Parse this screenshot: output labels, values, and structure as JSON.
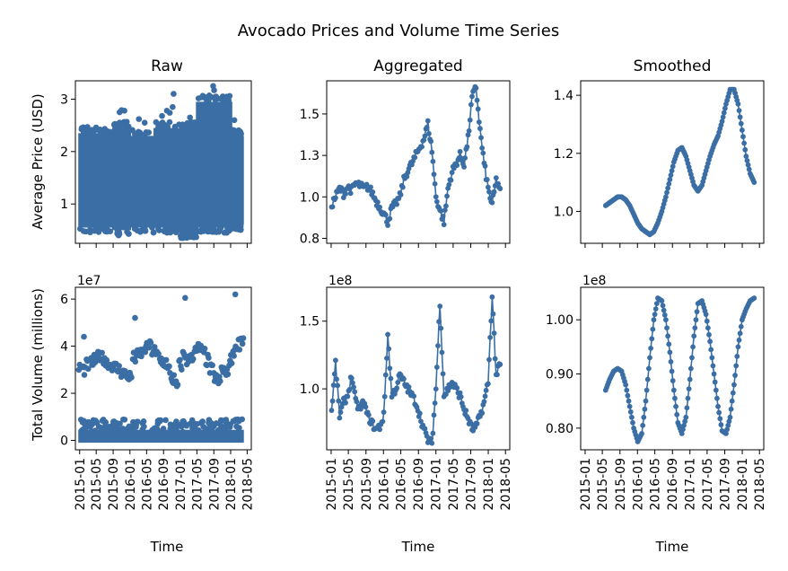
{
  "figure": {
    "title": "Avocado Prices and Volume Time Series",
    "series_color": "#3a6ea5"
  },
  "x_axis": {
    "tick_labels": [
      "2015-01",
      "2015-05",
      "2015-09",
      "2016-01",
      "2016-05",
      "2016-09",
      "2017-01",
      "2017-05",
      "2017-09",
      "2018-01",
      "2018-05"
    ],
    "label": "Time"
  },
  "chart_data": [
    {
      "id": "raw-price",
      "type": "scatter",
      "title": "Raw",
      "ylabel": "Average Price (USD)",
      "xlabel": "",
      "ylim": [
        0.25,
        3.35
      ],
      "yticks": [
        1,
        2,
        3
      ],
      "scale_label": "",
      "bands": [
        {
          "start": "2015-01-04",
          "end": "2015-08-30",
          "min": 0.55,
          "max": 2.35
        },
        {
          "start": "2015-09-06",
          "end": "2015-12-27",
          "min": 0.5,
          "max": 2.45
        },
        {
          "start": "2016-01-03",
          "end": "2016-06-26",
          "min": 0.55,
          "max": 2.3
        },
        {
          "start": "2016-07-03",
          "end": "2016-12-25",
          "min": 0.55,
          "max": 2.45
        },
        {
          "start": "2017-01-01",
          "end": "2017-04-30",
          "min": 0.45,
          "max": 2.45
        },
        {
          "start": "2017-05-07",
          "end": "2017-12-31",
          "min": 0.55,
          "max": 2.95
        },
        {
          "start": "2018-01-07",
          "end": "2018-03-25",
          "min": 0.6,
          "max": 2.3
        }
      ],
      "outliers": [
        {
          "x": "2015-10-18",
          "y": 2.75
        },
        {
          "x": "2015-11-01",
          "y": 2.79
        },
        {
          "x": "2015-11-22",
          "y": 2.78
        },
        {
          "x": "2016-03-06",
          "y": 2.62
        },
        {
          "x": "2016-04-17",
          "y": 2.55
        },
        {
          "x": "2016-08-21",
          "y": 2.68
        },
        {
          "x": "2016-09-25",
          "y": 2.78
        },
        {
          "x": "2016-10-16",
          "y": 2.74
        },
        {
          "x": "2016-11-06",
          "y": 2.85
        },
        {
          "x": "2016-11-13",
          "y": 3.1
        },
        {
          "x": "2017-03-12",
          "y": 2.65
        },
        {
          "x": "2017-06-25",
          "y": 2.9
        },
        {
          "x": "2017-07-30",
          "y": 3.07
        },
        {
          "x": "2017-08-27",
          "y": 3.25
        },
        {
          "x": "2017-09-03",
          "y": 3.17
        },
        {
          "x": "2017-09-17",
          "y": 3.05
        },
        {
          "x": "2017-10-29",
          "y": 3.0
        },
        {
          "x": "2017-11-19",
          "y": 2.95
        },
        {
          "x": "2017-12-03",
          "y": 2.7
        },
        {
          "x": "2018-01-28",
          "y": 2.6
        }
      ]
    },
    {
      "id": "agg-price",
      "type": "line",
      "title": "Aggregated",
      "ylabel": "",
      "xlabel": "",
      "ylim": [
        0.72,
        1.7
      ],
      "yticks": [
        0.75,
        1.0,
        1.25,
        1.5
      ],
      "scale_label": "",
      "x": [
        "2015-01-04",
        "2015-02-01",
        "2015-03-01",
        "2015-03-29",
        "2015-04-26",
        "2015-05-24",
        "2015-06-21",
        "2015-07-19",
        "2015-08-16",
        "2015-09-13",
        "2015-10-11",
        "2015-11-08",
        "2015-12-06",
        "2016-01-03",
        "2016-01-31",
        "2016-02-28",
        "2016-03-27",
        "2016-04-24",
        "2016-05-22",
        "2016-06-19",
        "2016-07-17",
        "2016-08-14",
        "2016-09-11",
        "2016-10-09",
        "2016-11-06",
        "2016-12-04",
        "2017-01-01",
        "2017-01-29",
        "2017-02-26",
        "2017-03-26",
        "2017-04-23",
        "2017-05-21",
        "2017-06-18",
        "2017-07-16",
        "2017-08-13",
        "2017-09-10",
        "2017-10-08",
        "2017-11-05",
        "2017-12-03",
        "2017-12-31",
        "2018-01-28",
        "2018-02-25",
        "2018-03-25"
      ],
      "values": [
        0.95,
        1.0,
        1.05,
        1.02,
        1.06,
        1.04,
        1.08,
        1.07,
        1.05,
        1.06,
        1.03,
        0.98,
        0.94,
        0.9,
        0.85,
        0.93,
        0.96,
        1.0,
        1.1,
        1.16,
        1.2,
        1.25,
        1.3,
        1.35,
        1.44,
        1.28,
        1.0,
        0.92,
        0.85,
        1.05,
        1.15,
        1.2,
        1.25,
        1.2,
        1.35,
        1.6,
        1.66,
        1.4,
        1.2,
        1.05,
        0.95,
        1.1,
        1.05
      ]
    },
    {
      "id": "smooth-price",
      "type": "line",
      "title": "Smoothed",
      "ylabel": "",
      "xlabel": "",
      "ylim": [
        0.89,
        1.45
      ],
      "yticks": [
        1.0,
        1.2,
        1.4
      ],
      "scale_label": "",
      "x": [
        "2015-05-24",
        "2015-06-21",
        "2015-07-19",
        "2015-08-16",
        "2015-09-13",
        "2015-10-11",
        "2015-11-08",
        "2015-12-06",
        "2016-01-03",
        "2016-01-31",
        "2016-02-28",
        "2016-03-27",
        "2016-04-24",
        "2016-05-22",
        "2016-06-19",
        "2016-07-17",
        "2016-08-14",
        "2016-09-11",
        "2016-10-09",
        "2016-11-06",
        "2016-12-04",
        "2017-01-01",
        "2017-01-29",
        "2017-02-26",
        "2017-03-26",
        "2017-04-23",
        "2017-05-21",
        "2017-06-18",
        "2017-07-16",
        "2017-08-13",
        "2017-09-10",
        "2017-10-08",
        "2017-11-05",
        "2017-12-03",
        "2017-12-31",
        "2018-01-28",
        "2018-02-25",
        "2018-03-25"
      ],
      "values": [
        1.02,
        1.03,
        1.04,
        1.05,
        1.05,
        1.04,
        1.02,
        0.99,
        0.96,
        0.94,
        0.93,
        0.92,
        0.93,
        0.96,
        1.0,
        1.05,
        1.11,
        1.17,
        1.21,
        1.22,
        1.19,
        1.14,
        1.09,
        1.07,
        1.09,
        1.14,
        1.19,
        1.23,
        1.26,
        1.31,
        1.37,
        1.42,
        1.42,
        1.37,
        1.28,
        1.19,
        1.13,
        1.1
      ]
    },
    {
      "id": "raw-volume",
      "type": "scatter",
      "title": "",
      "ylabel": "Total Volume (millions)",
      "xlabel": "Time",
      "ylim": [
        -0.4,
        6.5
      ],
      "yticks": [
        0,
        2,
        4,
        6
      ],
      "scale_label": "1e7",
      "upper_x": [
        "2015-01-04",
        "2015-02-01",
        "2015-03-01",
        "2015-03-29",
        "2015-04-26",
        "2015-05-24",
        "2015-06-21",
        "2015-07-19",
        "2015-08-16",
        "2015-09-13",
        "2015-10-11",
        "2015-11-08",
        "2015-12-06",
        "2016-01-03",
        "2016-01-31",
        "2016-02-28",
        "2016-03-27",
        "2016-04-24",
        "2016-05-22",
        "2016-06-19",
        "2016-07-17",
        "2016-08-14",
        "2016-09-11",
        "2016-10-09",
        "2016-11-06",
        "2016-12-04",
        "2017-01-01",
        "2017-01-29",
        "2017-02-26",
        "2017-03-26",
        "2017-04-23",
        "2017-05-21",
        "2017-06-18",
        "2017-07-16",
        "2017-08-13",
        "2017-09-10",
        "2017-10-08",
        "2017-11-05",
        "2017-12-03",
        "2017-12-31",
        "2018-01-28",
        "2018-02-25",
        "2018-03-25"
      ],
      "upper_values": [
        3.1,
        3.0,
        3.2,
        3.3,
        3.4,
        3.6,
        3.5,
        3.3,
        3.2,
        3.1,
        3.0,
        2.9,
        2.8,
        2.7,
        3.5,
        3.6,
        3.7,
        3.9,
        4.0,
        3.8,
        3.6,
        3.4,
        3.3,
        3.0,
        2.6,
        2.3,
        3.2,
        3.6,
        3.4,
        3.6,
        3.8,
        3.9,
        3.7,
        3.4,
        3.0,
        2.7,
        2.5,
        3.0,
        2.8,
        3.4,
        3.8,
        4.1,
        4.3
      ],
      "lower_range": [
        0,
        0.9
      ],
      "outliers": [
        {
          "x": "2015-02-01",
          "y": 4.4
        },
        {
          "x": "2016-02-07",
          "y": 5.2
        },
        {
          "x": "2017-02-05",
          "y": 6.05
        },
        {
          "x": "2018-02-04",
          "y": 6.2
        }
      ]
    },
    {
      "id": "agg-volume",
      "type": "line",
      "title": "",
      "ylabel": "",
      "xlabel": "Time",
      "ylim": [
        0.55,
        1.75
      ],
      "yticks": [
        1.0,
        1.5
      ],
      "scale_label": "1e8",
      "x": [
        "2015-01-04",
        "2015-02-01",
        "2015-03-01",
        "2015-03-29",
        "2015-04-26",
        "2015-05-24",
        "2015-06-21",
        "2015-07-19",
        "2015-08-16",
        "2015-09-13",
        "2015-10-11",
        "2015-11-08",
        "2015-12-06",
        "2016-01-03",
        "2016-01-31",
        "2016-02-28",
        "2016-03-27",
        "2016-04-24",
        "2016-05-22",
        "2016-06-19",
        "2016-07-17",
        "2016-08-14",
        "2016-09-11",
        "2016-10-09",
        "2016-11-06",
        "2016-12-04",
        "2017-01-01",
        "2017-01-29",
        "2017-02-26",
        "2017-03-26",
        "2017-04-23",
        "2017-05-21",
        "2017-06-18",
        "2017-07-16",
        "2017-08-13",
        "2017-09-10",
        "2017-10-08",
        "2017-11-05",
        "2017-12-03",
        "2017-12-31",
        "2018-01-28",
        "2018-02-25",
        "2018-03-25"
      ],
      "values": [
        0.84,
        1.19,
        0.8,
        0.9,
        0.95,
        1.1,
        0.9,
        0.85,
        0.9,
        0.8,
        0.75,
        0.7,
        0.72,
        0.8,
        1.4,
        0.95,
        1.0,
        1.1,
        1.05,
        1.0,
        0.95,
        0.9,
        0.8,
        0.7,
        0.62,
        0.6,
        1.0,
        1.64,
        0.95,
        1.0,
        1.05,
        1.0,
        0.95,
        0.85,
        0.78,
        0.7,
        0.72,
        0.8,
        0.9,
        1.05,
        1.69,
        1.1,
        1.18
      ]
    },
    {
      "id": "smooth-volume",
      "type": "line",
      "title": "",
      "ylabel": "",
      "xlabel": "Time",
      "ylim": [
        0.76,
        1.06
      ],
      "yticks": [
        0.8,
        0.9,
        1.0
      ],
      "scale_label": "1e8",
      "x": [
        "2015-05-24",
        "2015-06-21",
        "2015-07-19",
        "2015-08-16",
        "2015-09-13",
        "2015-10-11",
        "2015-11-08",
        "2015-12-06",
        "2016-01-03",
        "2016-01-31",
        "2016-02-28",
        "2016-03-27",
        "2016-04-24",
        "2016-05-22",
        "2016-06-19",
        "2016-07-17",
        "2016-08-14",
        "2016-09-11",
        "2016-10-09",
        "2016-11-06",
        "2016-12-04",
        "2017-01-01",
        "2017-01-29",
        "2017-02-26",
        "2017-03-26",
        "2017-04-23",
        "2017-05-21",
        "2017-06-18",
        "2017-07-16",
        "2017-08-13",
        "2017-09-10",
        "2017-10-08",
        "2017-11-05",
        "2017-12-03",
        "2017-12-31",
        "2018-01-28",
        "2018-02-25",
        "2018-03-25"
      ],
      "values": [
        0.87,
        0.89,
        0.905,
        0.91,
        0.905,
        0.88,
        0.84,
        0.8,
        0.775,
        0.79,
        0.85,
        0.93,
        1.0,
        1.04,
        1.035,
        1.0,
        0.94,
        0.87,
        0.81,
        0.79,
        0.82,
        0.89,
        0.97,
        1.03,
        1.035,
        1.01,
        0.96,
        0.9,
        0.84,
        0.795,
        0.79,
        0.82,
        0.88,
        0.95,
        1.0,
        1.02,
        1.035,
        1.04
      ]
    }
  ]
}
